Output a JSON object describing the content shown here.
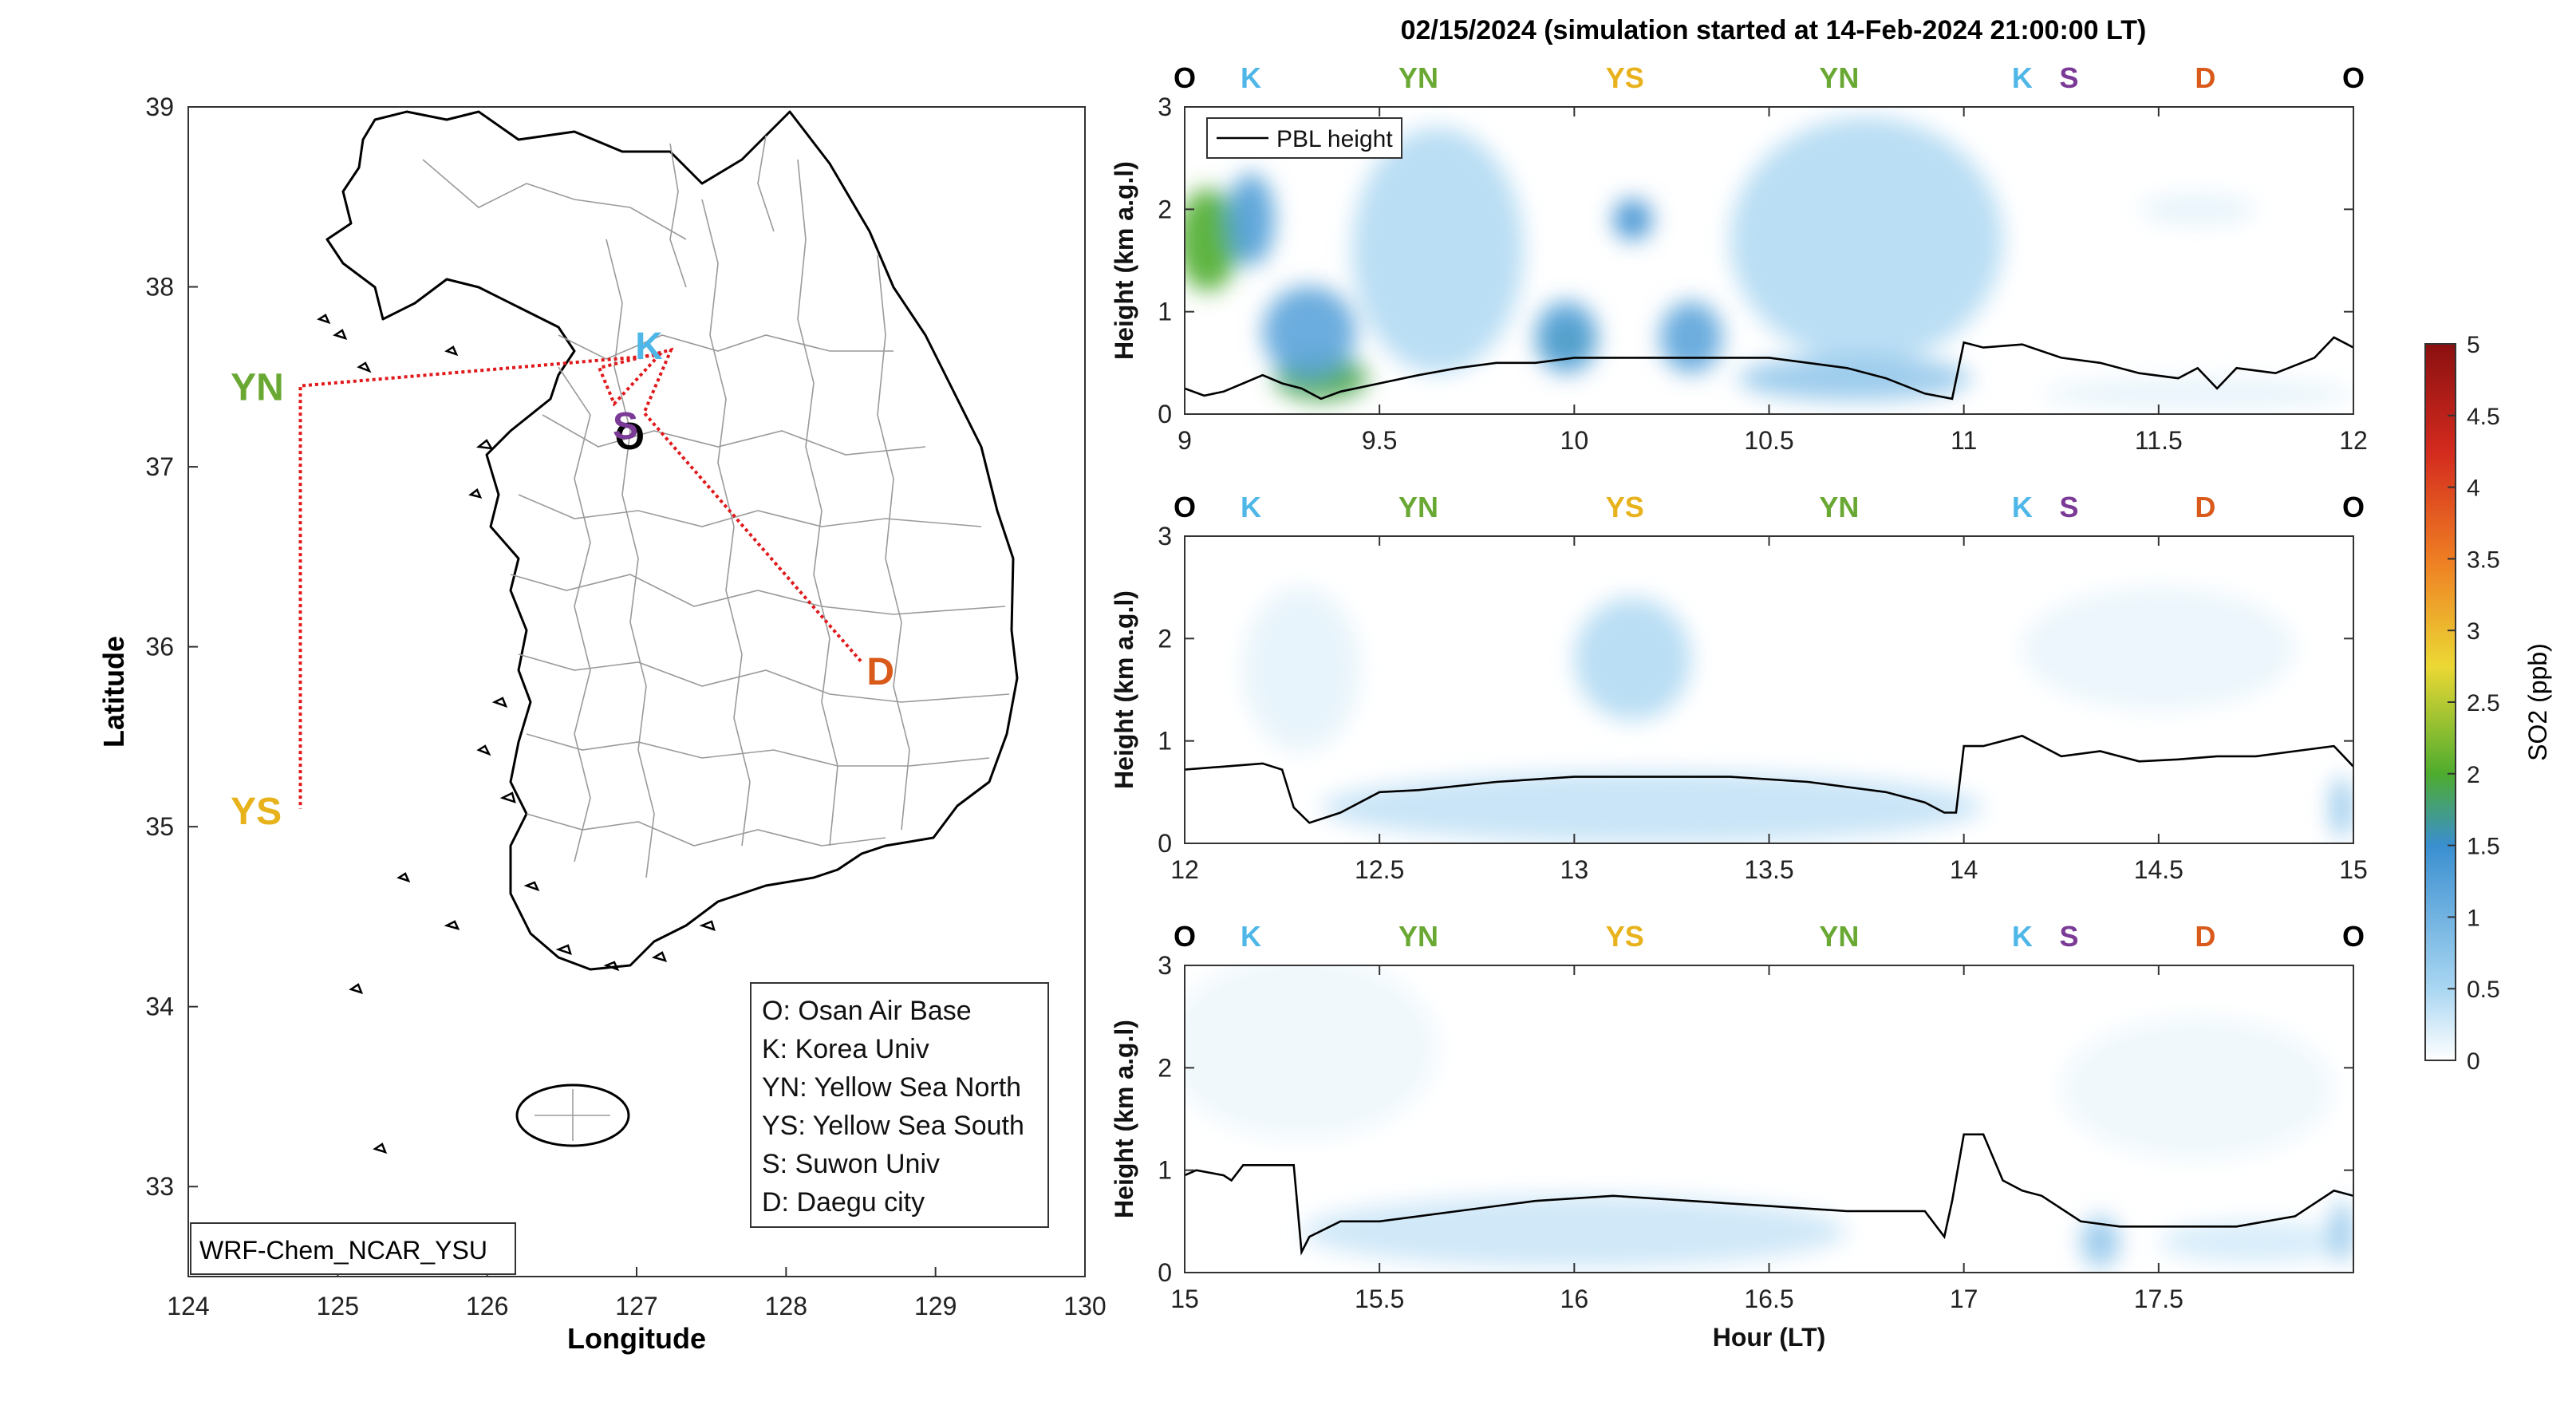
{
  "colors": {
    "route": "#e0191c",
    "pbl": "#000000",
    "O": "#000000",
    "K": "#4fb7e8",
    "YN": "#6aa834",
    "YS": "#e8b21c",
    "S": "#7a3a96",
    "D": "#d95a1a",
    "colormap": [
      "#ffffff",
      "#a9d6f2",
      "#3a8fd0",
      "#4eac2e",
      "#ecd835",
      "#ee7d23",
      "#d32a1e",
      "#8a1010"
    ]
  },
  "map": {
    "xlabel": "Longitude",
    "ylabel": "Latitude",
    "xticks": [
      "124",
      "125",
      "126",
      "127",
      "128",
      "129",
      "130"
    ],
    "yticks": [
      "39",
      "38",
      "37",
      "36",
      "35",
      "34",
      "33"
    ],
    "xlim": [
      124,
      130
    ],
    "ylim": [
      32.5,
      39
    ],
    "model_label": "WRF-Chem_NCAR_YSU",
    "sites": [
      {
        "code": "O",
        "lon": 126.95,
        "lat": 37.08
      },
      {
        "code": "K",
        "lon": 127.15,
        "lat": 37.6
      },
      {
        "code": "YN",
        "lon": 124.7,
        "lat": 37.45
      },
      {
        "code": "YS",
        "lon": 124.7,
        "lat": 35.05
      },
      {
        "code": "S",
        "lon": 127.0,
        "lat": 37.28
      },
      {
        "code": "D",
        "lon": 128.55,
        "lat": 35.87
      }
    ],
    "legend": [
      "O: Osan Air Base",
      "K: Korea Univ",
      "YN: Yellow Sea North",
      "YS: Yellow Sea South",
      "S: Suwon Univ",
      "D: Daegu city"
    ]
  },
  "title": "02/15/2024 (simulation started at 14-Feb-2024 21:00:00 LT)",
  "route_labels": [
    "O",
    "K",
    "YN",
    "YS",
    "YN",
    "K",
    "S",
    "D",
    "O"
  ],
  "colorbar": {
    "label": "SO2 (ppb)",
    "ticks": [
      "0",
      "0.5",
      "1",
      "1.5",
      "2",
      "2.5",
      "3",
      "3.5",
      "4",
      "4.5",
      "5"
    ],
    "range": [
      0,
      5
    ]
  },
  "chart_data": [
    {
      "type": "heatmap",
      "ylabel": "Height (km a.g.l)",
      "xlim": [
        9,
        12
      ],
      "ylim": [
        0,
        3
      ],
      "xticks": [
        "9",
        "9.5",
        "10",
        "10.5",
        "11",
        "11.5",
        "12"
      ],
      "yticks": [
        "0",
        "1",
        "2",
        "3"
      ],
      "legend": "PBL height",
      "route_label_hours": [
        9.0,
        9.17,
        9.6,
        10.13,
        10.68,
        11.15,
        11.27,
        11.62,
        12.0
      ],
      "pbl": {
        "x": [
          9.0,
          9.05,
          9.1,
          9.15,
          9.2,
          9.25,
          9.3,
          9.35,
          9.4,
          9.5,
          9.6,
          9.7,
          9.8,
          9.9,
          10.0,
          10.1,
          10.2,
          10.3,
          10.4,
          10.5,
          10.6,
          10.7,
          10.8,
          10.9,
          10.97,
          11.0,
          11.05,
          11.15,
          11.25,
          11.35,
          11.45,
          11.55,
          11.6,
          11.65,
          11.7,
          11.8,
          11.9,
          11.95,
          12.0
        ],
        "y": [
          0.25,
          0.18,
          0.22,
          0.3,
          0.38,
          0.3,
          0.25,
          0.15,
          0.22,
          0.3,
          0.38,
          0.45,
          0.5,
          0.5,
          0.55,
          0.55,
          0.55,
          0.55,
          0.55,
          0.55,
          0.5,
          0.45,
          0.35,
          0.2,
          0.15,
          0.7,
          0.65,
          0.68,
          0.55,
          0.5,
          0.4,
          0.35,
          0.45,
          0.25,
          0.45,
          0.4,
          0.55,
          0.75,
          0.65
        ]
      },
      "so2_blobs": [
        {
          "x": 9.06,
          "y": 1.7,
          "rx": 0.08,
          "ry": 0.5,
          "value": 2.0
        },
        {
          "x": 9.17,
          "y": 1.9,
          "rx": 0.06,
          "ry": 0.45,
          "value": 1.3
        },
        {
          "x": 9.35,
          "y": 0.35,
          "rx": 0.12,
          "ry": 0.22,
          "value": 1.9
        },
        {
          "x": 9.32,
          "y": 0.8,
          "rx": 0.12,
          "ry": 0.45,
          "value": 1.2
        },
        {
          "x": 9.65,
          "y": 1.6,
          "rx": 0.22,
          "ry": 1.2,
          "value": 0.45
        },
        {
          "x": 9.98,
          "y": 0.72,
          "rx": 0.06,
          "ry": 0.15,
          "value": 2.0
        },
        {
          "x": 9.98,
          "y": 0.75,
          "rx": 0.08,
          "ry": 0.35,
          "value": 1.3
        },
        {
          "x": 10.15,
          "y": 1.9,
          "rx": 0.05,
          "ry": 0.2,
          "value": 1.5
        },
        {
          "x": 10.3,
          "y": 0.75,
          "rx": 0.08,
          "ry": 0.35,
          "value": 1.2
        },
        {
          "x": 10.75,
          "y": 1.7,
          "rx": 0.35,
          "ry": 1.2,
          "value": 0.45
        },
        {
          "x": 10.72,
          "y": 0.35,
          "rx": 0.3,
          "ry": 0.22,
          "value": 0.7
        },
        {
          "x": 11.6,
          "y": 2.0,
          "rx": 0.15,
          "ry": 0.15,
          "value": 0.15
        },
        {
          "x": 11.6,
          "y": 0.2,
          "rx": 0.4,
          "ry": 0.15,
          "value": 0.15
        }
      ]
    },
    {
      "type": "heatmap",
      "ylabel": "Height (km a.g.l)",
      "xlim": [
        12,
        15
      ],
      "ylim": [
        0,
        3
      ],
      "xticks": [
        "12",
        "12.5",
        "13",
        "13.5",
        "14",
        "14.5",
        "15"
      ],
      "yticks": [
        "0",
        "1",
        "2",
        "3"
      ],
      "route_label_hours": [
        12.0,
        12.17,
        12.6,
        13.13,
        13.68,
        14.15,
        14.27,
        14.62,
        15.0
      ],
      "pbl": {
        "x": [
          12.0,
          12.1,
          12.2,
          12.25,
          12.28,
          12.32,
          12.4,
          12.5,
          12.6,
          12.8,
          13.0,
          13.2,
          13.4,
          13.6,
          13.8,
          13.9,
          13.95,
          13.98,
          14.0,
          14.05,
          14.15,
          14.25,
          14.35,
          14.45,
          14.55,
          14.65,
          14.75,
          14.85,
          14.95,
          15.0
        ],
        "y": [
          0.72,
          0.75,
          0.78,
          0.72,
          0.35,
          0.2,
          0.3,
          0.5,
          0.52,
          0.6,
          0.65,
          0.65,
          0.65,
          0.6,
          0.5,
          0.4,
          0.3,
          0.3,
          0.95,
          0.95,
          1.05,
          0.85,
          0.9,
          0.8,
          0.82,
          0.85,
          0.85,
          0.9,
          0.95,
          0.75
        ]
      },
      "so2_blobs": [
        {
          "x": 12.3,
          "y": 1.7,
          "rx": 0.15,
          "ry": 0.8,
          "value": 0.15
        },
        {
          "x": 13.15,
          "y": 1.8,
          "rx": 0.15,
          "ry": 0.6,
          "value": 0.45
        },
        {
          "x": 13.2,
          "y": 0.35,
          "rx": 0.85,
          "ry": 0.35,
          "value": 0.35
        },
        {
          "x": 14.5,
          "y": 1.9,
          "rx": 0.35,
          "ry": 0.6,
          "value": 0.12
        },
        {
          "x": 14.97,
          "y": 0.35,
          "rx": 0.03,
          "ry": 0.3,
          "value": 0.7
        }
      ]
    },
    {
      "type": "heatmap",
      "ylabel": "Height (km a.g.l)",
      "xlabel": "Hour (LT)",
      "xlim": [
        15,
        18
      ],
      "ylim": [
        0,
        3
      ],
      "xticks": [
        "15",
        "15.5",
        "16",
        "16.5",
        "17",
        "17.5"
      ],
      "yticks": [
        "0",
        "1",
        "2",
        "3"
      ],
      "route_label_hours": [
        15.0,
        15.17,
        15.6,
        16.13,
        16.68,
        17.15,
        17.27,
        17.62,
        18.0
      ],
      "pbl": {
        "x": [
          15.0,
          15.03,
          15.1,
          15.12,
          15.15,
          15.2,
          15.28,
          15.3,
          15.32,
          15.4,
          15.5,
          15.7,
          15.9,
          16.1,
          16.3,
          16.5,
          16.7,
          16.9,
          16.95,
          16.97,
          17.0,
          17.05,
          17.1,
          17.15,
          17.2,
          17.3,
          17.4,
          17.55,
          17.7,
          17.85,
          17.95,
          18.0
        ],
        "y": [
          0.95,
          1.0,
          0.95,
          0.9,
          1.05,
          1.05,
          1.05,
          0.2,
          0.35,
          0.5,
          0.5,
          0.6,
          0.7,
          0.75,
          0.7,
          0.65,
          0.6,
          0.6,
          0.35,
          0.7,
          1.35,
          1.35,
          0.9,
          0.8,
          0.75,
          0.5,
          0.45,
          0.45,
          0.45,
          0.55,
          0.8,
          0.75
        ]
      },
      "so2_blobs": [
        {
          "x": 15.3,
          "y": 2.2,
          "rx": 0.35,
          "ry": 0.9,
          "value": 0.1
        },
        {
          "x": 16.0,
          "y": 0.4,
          "rx": 0.7,
          "ry": 0.35,
          "value": 0.3
        },
        {
          "x": 17.35,
          "y": 0.3,
          "rx": 0.05,
          "ry": 0.25,
          "value": 0.7
        },
        {
          "x": 17.75,
          "y": 0.3,
          "rx": 0.25,
          "ry": 0.2,
          "value": 0.25
        },
        {
          "x": 17.97,
          "y": 0.4,
          "rx": 0.03,
          "ry": 0.3,
          "value": 0.7
        },
        {
          "x": 17.6,
          "y": 1.8,
          "rx": 0.35,
          "ry": 0.7,
          "value": 0.1
        }
      ]
    }
  ]
}
